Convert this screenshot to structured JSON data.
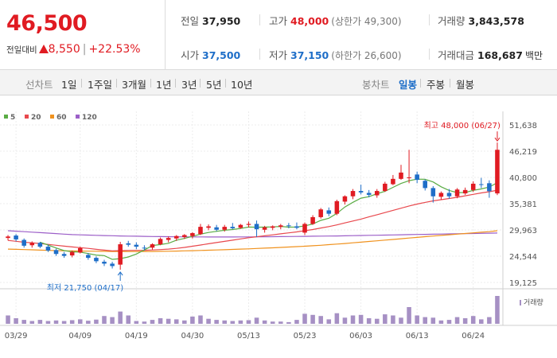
{
  "header": {
    "current_price": "46,500",
    "change_label": "전일대비",
    "change_amount": "8,550",
    "change_percent": "+22.53%",
    "stats": {
      "prev_close": {
        "label": "전일",
        "value": "37,950"
      },
      "high": {
        "label": "고가",
        "value": "48,000",
        "sub": "(상한가 49,300)"
      },
      "volume": {
        "label": "거래량",
        "value": "3,843,578"
      },
      "open": {
        "label": "시가",
        "value": "37,500"
      },
      "low": {
        "label": "저가",
        "value": "37,150",
        "sub": "(하한가 26,600)"
      },
      "trade_amount": {
        "label": "거래대금",
        "value": "168,687",
        "unit": "백만"
      }
    }
  },
  "period_tabs": {
    "label": "선차트",
    "items": [
      "1일",
      "1주일",
      "3개월",
      "1년",
      "3년",
      "5년",
      "10년"
    ]
  },
  "candle_tabs": {
    "label": "봉차트",
    "items": [
      "일봉",
      "주봉",
      "월봉"
    ],
    "active": "일봉"
  },
  "colors": {
    "up": "#e01b22",
    "down": "#1e6ec8",
    "ma5": "#5aac44",
    "ma20": "#e8484d",
    "ma60": "#f0921e",
    "ma120": "#9c5fc8",
    "volume": "#a690c4"
  },
  "chart_data": {
    "type": "candlestick",
    "legend": [
      {
        "name": "5",
        "color": "#5aac44"
      },
      {
        "name": "20",
        "color": "#e8484d"
      },
      {
        "name": "60",
        "color": "#f0921e"
      },
      {
        "name": "120",
        "color": "#9c5fc8"
      }
    ],
    "y_ticks": [
      "51,638",
      "46,219",
      "40,800",
      "35,381",
      "29,963",
      "24,544",
      "19,125"
    ],
    "ylim": [
      19125,
      51638
    ],
    "x_ticks": [
      "03/29",
      "04/09",
      "04/19",
      "04/30",
      "05/13",
      "05/23",
      "06/03",
      "06/13",
      "06/24"
    ],
    "annotations": {
      "high": {
        "text": "최고 48,000 (06/27)",
        "value": 48000
      },
      "low": {
        "text": "최저 21,750 (04/17)",
        "value": 21750
      }
    },
    "volume_label": "거래량",
    "candles": [
      {
        "date": "03/28",
        "open": 28300,
        "high": 28900,
        "low": 27800,
        "close": 28600
      },
      {
        "date": "03/29",
        "open": 28800,
        "high": 29100,
        "low": 27600,
        "close": 28000
      },
      {
        "date": "04/01",
        "open": 27900,
        "high": 28200,
        "low": 26300,
        "close": 26700
      },
      {
        "date": "04/02",
        "open": 26800,
        "high": 27600,
        "low": 26300,
        "close": 27300
      },
      {
        "date": "04/03",
        "open": 27300,
        "high": 27500,
        "low": 26200,
        "close": 26500
      },
      {
        "date": "04/04",
        "open": 26500,
        "high": 26900,
        "low": 25400,
        "close": 25700
      },
      {
        "date": "04/05",
        "open": 25800,
        "high": 26100,
        "low": 24600,
        "close": 25000
      },
      {
        "date": "04/08",
        "open": 25000,
        "high": 25400,
        "low": 24200,
        "close": 24600
      },
      {
        "date": "04/09",
        "open": 24700,
        "high": 25700,
        "low": 24300,
        "close": 25400
      },
      {
        "date": "04/10",
        "open": 25300,
        "high": 26500,
        "low": 25100,
        "close": 26200
      },
      {
        "date": "04/11",
        "open": 24800,
        "high": 25200,
        "low": 23800,
        "close": 24200
      },
      {
        "date": "04/12",
        "open": 24200,
        "high": 24500,
        "low": 23100,
        "close": 23500
      },
      {
        "date": "04/15",
        "open": 23400,
        "high": 23800,
        "low": 22500,
        "close": 23000
      },
      {
        "date": "04/16",
        "open": 23000,
        "high": 23400,
        "low": 22000,
        "close": 22500
      },
      {
        "date": "04/17",
        "open": 22800,
        "high": 27500,
        "low": 21750,
        "close": 27000
      },
      {
        "date": "04/18",
        "open": 27200,
        "high": 27700,
        "low": 26500,
        "close": 26900
      },
      {
        "date": "04/19",
        "open": 26900,
        "high": 27400,
        "low": 26000,
        "close": 26500
      },
      {
        "date": "04/22",
        "open": 26300,
        "high": 26800,
        "low": 25700,
        "close": 26200
      },
      {
        "date": "04/23",
        "open": 26300,
        "high": 27200,
        "low": 25900,
        "close": 27000
      },
      {
        "date": "04/24",
        "open": 27000,
        "high": 28400,
        "low": 26800,
        "close": 28100
      },
      {
        "date": "04/25",
        "open": 27900,
        "high": 28600,
        "low": 27400,
        "close": 28300
      },
      {
        "date": "04/26",
        "open": 28200,
        "high": 28900,
        "low": 27700,
        "close": 28700
      },
      {
        "date": "04/29",
        "open": 28500,
        "high": 29100,
        "low": 28100,
        "close": 28900
      },
      {
        "date": "04/30",
        "open": 28700,
        "high": 29500,
        "low": 28200,
        "close": 29300
      },
      {
        "date": "05/02",
        "open": 29100,
        "high": 31200,
        "low": 28900,
        "close": 30600
      },
      {
        "date": "05/03",
        "open": 30400,
        "high": 31100,
        "low": 29900,
        "close": 30700
      },
      {
        "date": "05/07",
        "open": 30500,
        "high": 31000,
        "low": 29700,
        "close": 30000
      },
      {
        "date": "05/08",
        "open": 30000,
        "high": 31000,
        "low": 29600,
        "close": 30600
      },
      {
        "date": "05/09",
        "open": 30600,
        "high": 31400,
        "low": 30100,
        "close": 30300
      },
      {
        "date": "05/10",
        "open": 30400,
        "high": 31200,
        "low": 30200,
        "close": 31000
      },
      {
        "date": "05/13",
        "open": 31000,
        "high": 31700,
        "low": 30500,
        "close": 31200
      },
      {
        "date": "05/14",
        "open": 31200,
        "high": 31900,
        "low": 28500,
        "close": 30100
      },
      {
        "date": "05/16",
        "open": 30000,
        "high": 30800,
        "low": 29400,
        "close": 30500
      },
      {
        "date": "05/17",
        "open": 30400,
        "high": 30900,
        "low": 29900,
        "close": 30700
      },
      {
        "date": "05/20",
        "open": 30600,
        "high": 31200,
        "low": 30100,
        "close": 30900
      },
      {
        "date": "05/21",
        "open": 30900,
        "high": 31400,
        "low": 30300,
        "close": 30800
      },
      {
        "date": "05/22",
        "open": 30700,
        "high": 31500,
        "low": 30100,
        "close": 30400
      },
      {
        "date": "05/23",
        "open": 29400,
        "high": 31500,
        "low": 28900,
        "close": 31200
      },
      {
        "date": "05/24",
        "open": 31200,
        "high": 33000,
        "low": 31000,
        "close": 32600
      },
      {
        "date": "05/27",
        "open": 32600,
        "high": 34500,
        "low": 32300,
        "close": 34200
      },
      {
        "date": "05/28",
        "open": 34000,
        "high": 34600,
        "low": 32800,
        "close": 33300
      },
      {
        "date": "05/29",
        "open": 33300,
        "high": 36200,
        "low": 33000,
        "close": 35900
      },
      {
        "date": "05/30",
        "open": 35800,
        "high": 37100,
        "low": 35200,
        "close": 36900
      },
      {
        "date": "05/31",
        "open": 36900,
        "high": 38400,
        "low": 36300,
        "close": 38000
      },
      {
        "date": "06/03",
        "open": 38000,
        "high": 39300,
        "low": 37300,
        "close": 37700
      },
      {
        "date": "06/04",
        "open": 37600,
        "high": 38200,
        "low": 36700,
        "close": 37200
      },
      {
        "date": "06/05",
        "open": 37100,
        "high": 38400,
        "low": 36600,
        "close": 38000
      },
      {
        "date": "06/07",
        "open": 38000,
        "high": 39900,
        "low": 37800,
        "close": 39500
      },
      {
        "date": "06/10",
        "open": 39400,
        "high": 41300,
        "low": 39200,
        "close": 40500
      },
      {
        "date": "06/11",
        "open": 40500,
        "high": 43400,
        "low": 40300,
        "close": 41800
      },
      {
        "date": "06/12",
        "open": 40800,
        "high": 46500,
        "low": 39600,
        "close": 40800
      },
      {
        "date": "06/13",
        "open": 41400,
        "high": 42000,
        "low": 39600,
        "close": 40300
      },
      {
        "date": "06/14",
        "open": 40100,
        "high": 40400,
        "low": 38100,
        "close": 38600
      },
      {
        "date": "06/17",
        "open": 38600,
        "high": 39000,
        "low": 35600,
        "close": 36900
      },
      {
        "date": "06/18",
        "open": 36800,
        "high": 37900,
        "low": 36200,
        "close": 37600
      },
      {
        "date": "06/19",
        "open": 37600,
        "high": 38400,
        "low": 36400,
        "close": 36900
      },
      {
        "date": "06/20",
        "open": 36900,
        "high": 38600,
        "low": 36500,
        "close": 38300
      },
      {
        "date": "06/21",
        "open": 37500,
        "high": 38700,
        "low": 37200,
        "close": 38200
      },
      {
        "date": "06/24",
        "open": 38200,
        "high": 40000,
        "low": 37800,
        "close": 39500
      },
      {
        "date": "06/25",
        "open": 39400,
        "high": 40700,
        "low": 38600,
        "close": 39300
      },
      {
        "date": "06/26",
        "open": 39600,
        "high": 40200,
        "low": 36600,
        "close": 37950
      },
      {
        "date": "06/27",
        "open": 37500,
        "high": 48000,
        "low": 37150,
        "close": 46500
      }
    ],
    "volume_values": [
      0.3,
      0.2,
      0.14,
      0.1,
      0.14,
      0.1,
      0.12,
      0.1,
      0.13,
      0.16,
      0.11,
      0.15,
      0.28,
      0.24,
      0.44,
      0.3,
      0.1,
      0.08,
      0.14,
      0.2,
      0.18,
      0.16,
      0.12,
      0.26,
      0.3,
      0.18,
      0.14,
      0.12,
      0.1,
      0.12,
      0.13,
      0.22,
      0.12,
      0.08,
      0.08,
      0.06,
      0.14,
      0.36,
      0.32,
      0.28,
      0.16,
      0.38,
      0.22,
      0.3,
      0.32,
      0.2,
      0.18,
      0.34,
      0.3,
      0.22,
      0.6,
      0.3,
      0.24,
      0.22,
      0.12,
      0.14,
      0.24,
      0.2,
      0.28,
      0.16,
      0.24,
      1.0
    ],
    "ma5": [
      null,
      null,
      null,
      null,
      27420,
      26840,
      26240,
      25700,
      25440,
      25380,
      25080,
      24780,
      24660,
      23880,
      24040,
      24380,
      24980,
      25820,
      26720,
      26940,
      27200,
      27840,
      28200,
      28640,
      29100,
      29440,
      29660,
      29900,
      30040,
      30260,
      30560,
      30520,
      30540,
      30580,
      30680,
      30540,
      30560,
      30800,
      31180,
      31940,
      32380,
      33360,
      34700,
      35660,
      36520,
      36820,
      37440,
      37920,
      38740,
      39560,
      40120,
      40440,
      40400,
      39860,
      38860,
      38100,
      37660,
      37680,
      38120,
      38420,
      38820,
      39720
    ],
    "ma20": [
      27800,
      27620,
      27420,
      27300,
      27150,
      26980,
      26800,
      26620,
      26450,
      26300,
      26150,
      25950,
      25800,
      25650,
      25700,
      25720,
      25740,
      25760,
      25820,
      25900,
      26000,
      26150,
      26350,
      26600,
      26850,
      27100,
      27350,
      27600,
      27850,
      28100,
      28350,
      28550,
      28750,
      28950,
      29150,
      29350,
      29550,
      29800,
      30050,
      30350,
      30650,
      31000,
      31400,
      31800,
      32200,
      32650,
      33100,
      33550,
      34000,
      34450,
      34900,
      35300,
      35650,
      35950,
      36200,
      36450,
      36700,
      37000,
      37300,
      37600,
      37850,
      38150
    ],
    "ma60": [
      26000,
      25950,
      25900,
      25850,
      25800,
      25750,
      25700,
      25650,
      25620,
      25600,
      25580,
      25560,
      25540,
      25520,
      25510,
      25500,
      25500,
      25510,
      25520,
      25540,
      25560,
      25600,
      25640,
      25680,
      25730,
      25780,
      25830,
      25880,
      25940,
      26000,
      26060,
      26130,
      26200,
      26270,
      26350,
      26430,
      26510,
      26600,
      26700,
      26800,
      26920,
      27040,
      27160,
      27300,
      27440,
      27580,
      27720,
      27860,
      28000,
      28140,
      28280,
      28420,
      28560,
      28700,
      28830,
      28960,
      29090,
      29220,
      29350,
      29480,
      29600,
      29800
    ],
    "ma120": [
      29800,
      29700,
      29600,
      29500,
      29400,
      29300,
      29200,
      29100,
      29000,
      28950,
      28900,
      28850,
      28800,
      28760,
      28720,
      28690,
      28660,
      28630,
      28600,
      28580,
      28560,
      28540,
      28530,
      28520,
      28510,
      28500,
      28500,
      28500,
      28500,
      28510,
      28520,
      28530,
      28540,
      28560,
      28580,
      28600,
      28620,
      28640,
      28660,
      28680,
      28700,
      28720,
      28750,
      28780,
      28810,
      28840,
      28870,
      28900,
      28930,
      28960,
      28990,
      29020,
      29050,
      29080,
      29110,
      29140,
      29170,
      29200,
      29230,
      29260,
      29290,
      29320
    ]
  }
}
